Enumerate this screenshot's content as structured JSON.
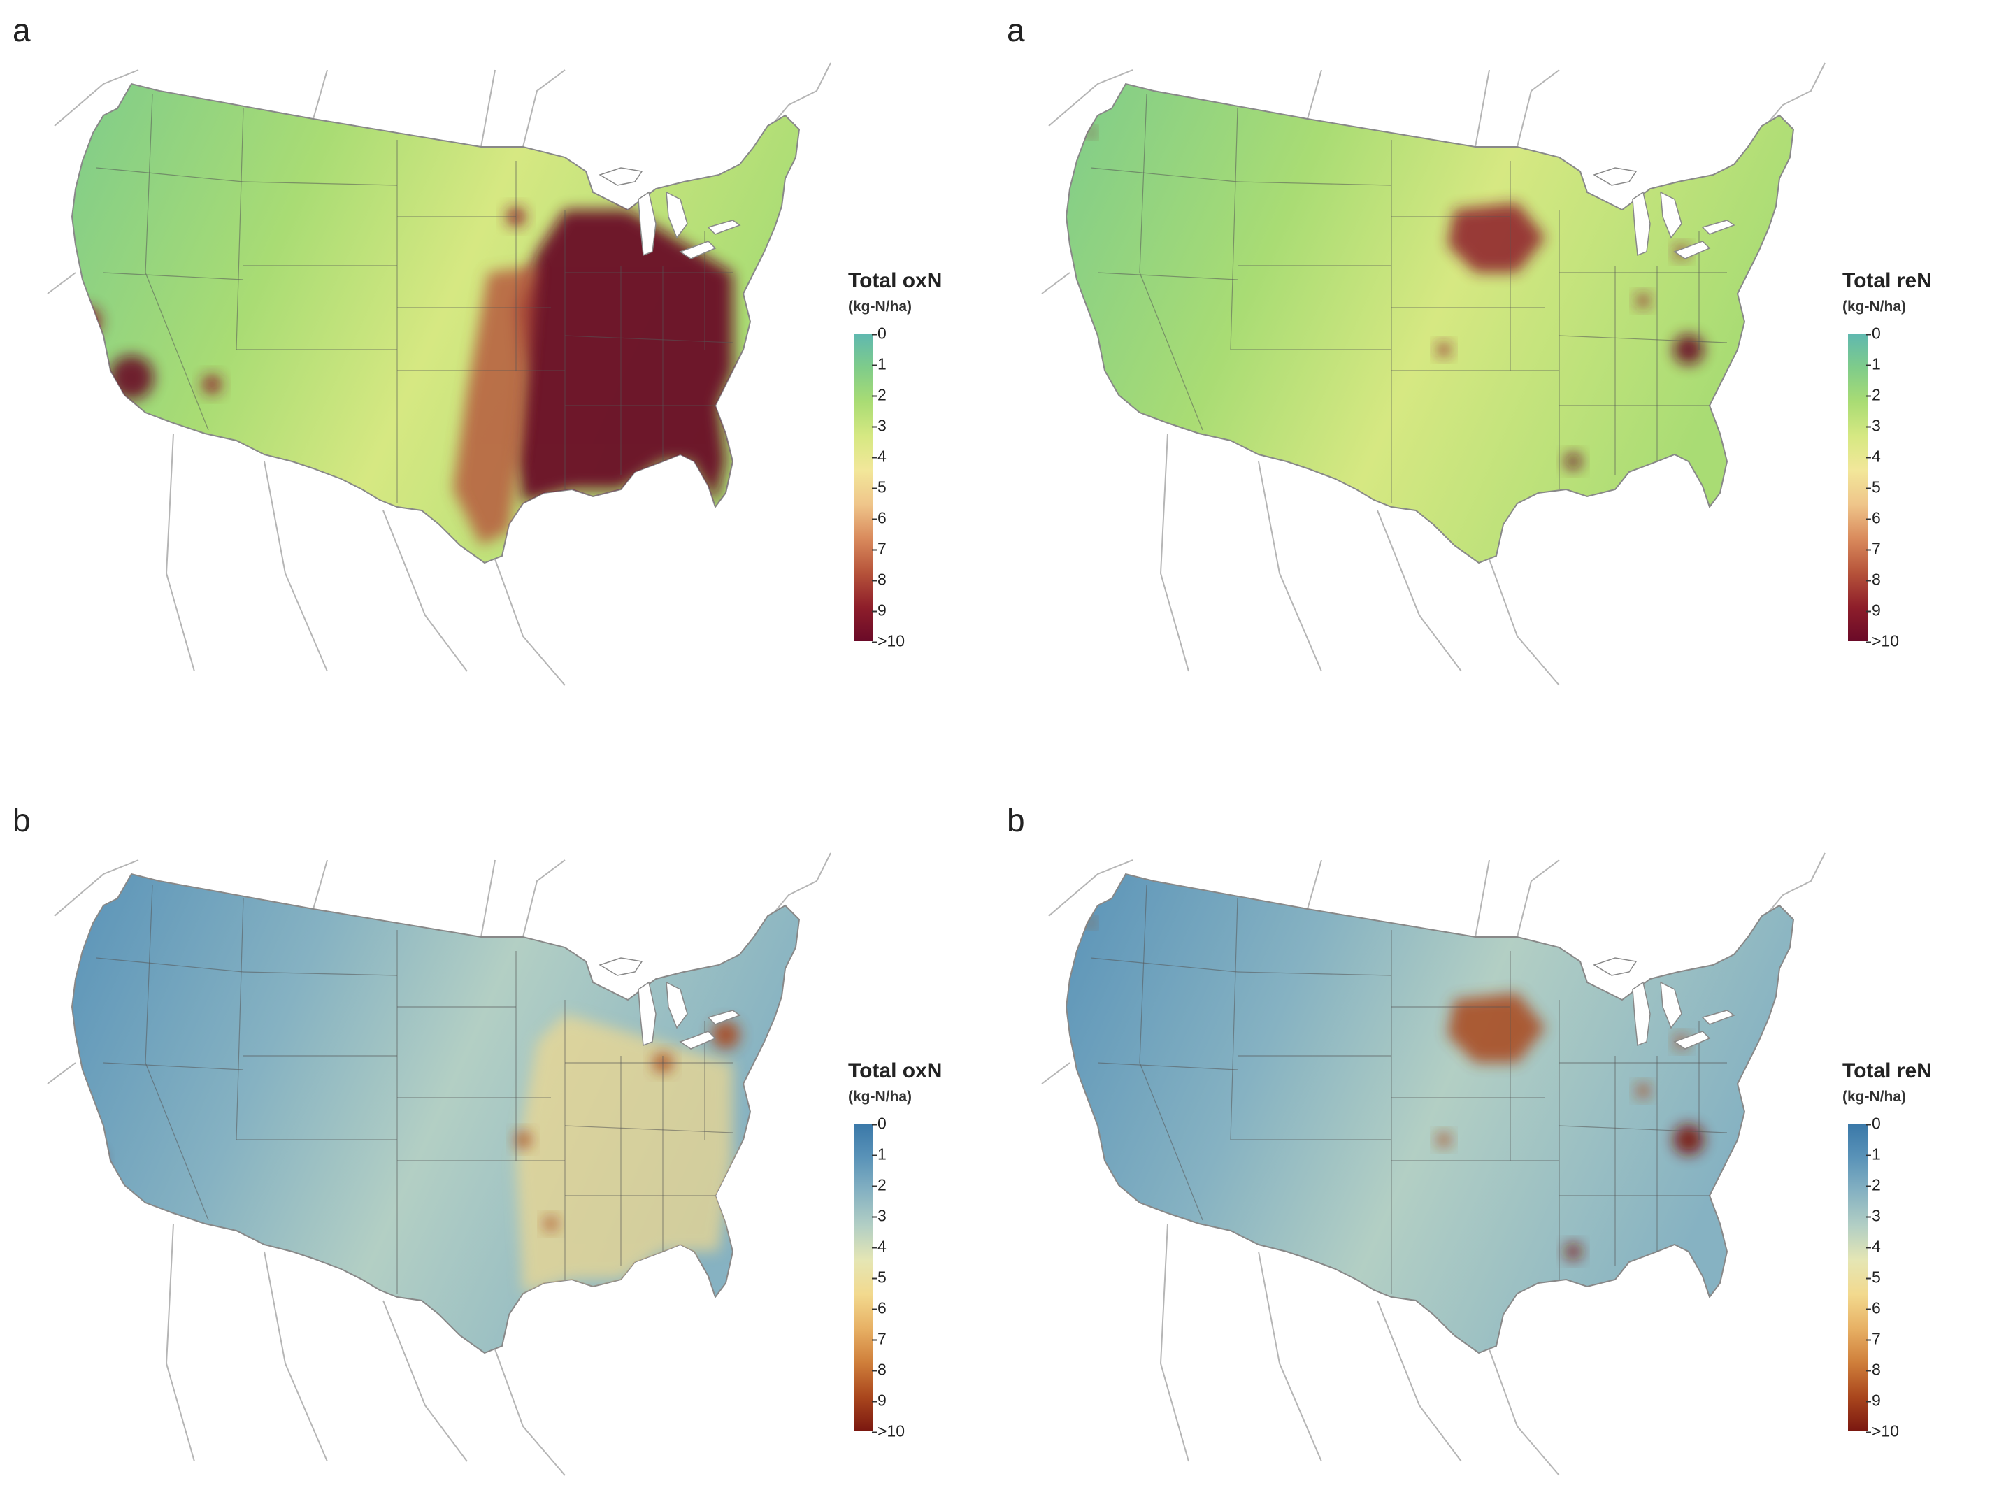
{
  "panels": [
    {
      "letter": "a",
      "legend_title": "Total oxN",
      "legend_unit": "(kg-N/ha)",
      "palette": [
        "#5fb8b0",
        "#7fcc8a",
        "#a9dc74",
        "#d6e882",
        "#f2e79a",
        "#efc58a",
        "#d98a5c",
        "#b6533a",
        "#8e1e2a",
        "#6a0a28"
      ],
      "hotspots": "east"
    },
    {
      "letter": "a",
      "legend_title": "Total reN",
      "legend_unit": "(kg-N/ha)",
      "palette": [
        "#5fb8b0",
        "#7fcc8a",
        "#a9dc74",
        "#d6e882",
        "#f2e79a",
        "#efc58a",
        "#d98a5c",
        "#b6533a",
        "#8e1e2a",
        "#6a0a28"
      ],
      "hotspots": "midwest"
    },
    {
      "letter": "b",
      "legend_title": "Total oxN",
      "legend_unit": "(kg-N/ha)",
      "palette": [
        "#3a78a8",
        "#5a93b8",
        "#86b2c2",
        "#b3cfc4",
        "#e5e6b4",
        "#f2d98e",
        "#e7b064",
        "#cf7e3a",
        "#a9461d",
        "#7a1710"
      ],
      "hotspots": "east-light"
    },
    {
      "letter": "b",
      "legend_title": "Total reN",
      "legend_unit": "(kg-N/ha)",
      "palette": [
        "#3a78a8",
        "#5a93b8",
        "#86b2c2",
        "#b3cfc4",
        "#e5e6b4",
        "#f2d98e",
        "#e7b064",
        "#cf7e3a",
        "#a9461d",
        "#7a1710"
      ],
      "hotspots": "midwest"
    }
  ],
  "legend_ticks": [
    "0",
    "1",
    "2",
    "3",
    "4",
    "5",
    "6",
    "7",
    "8",
    "9",
    ">10"
  ]
}
